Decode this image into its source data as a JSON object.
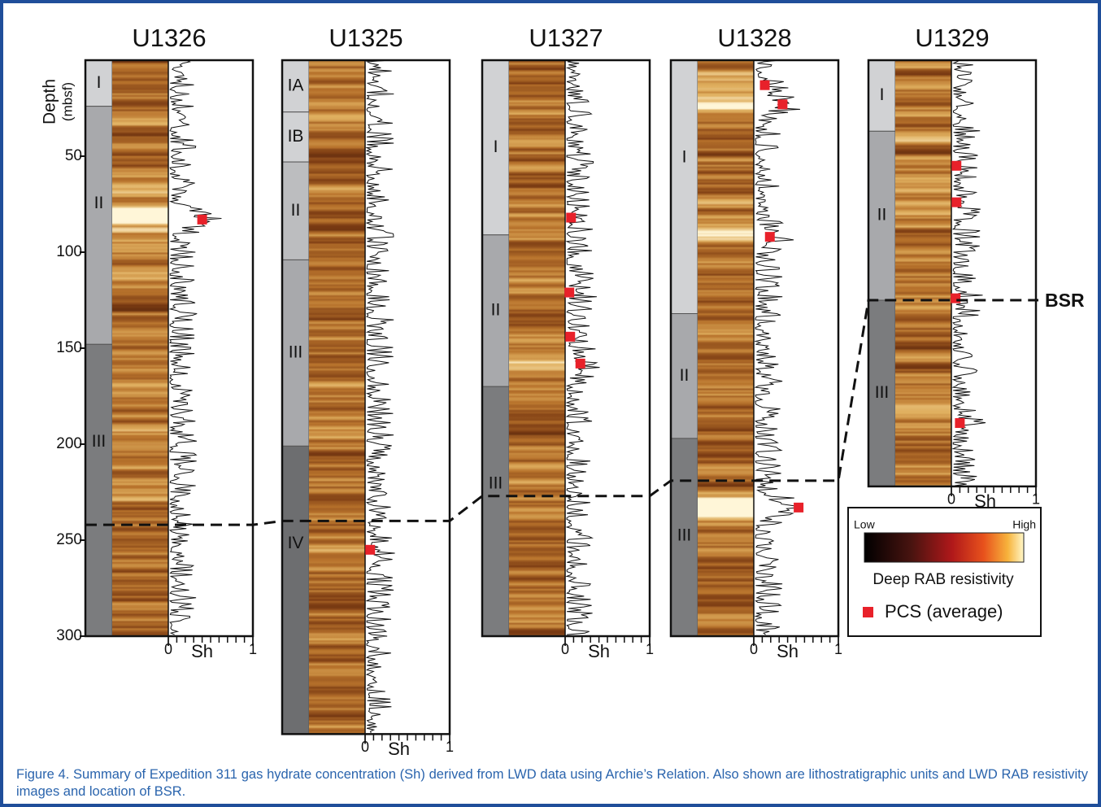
{
  "figure": {
    "depth_axis": {
      "title": "Depth",
      "unit": "(mbsf)",
      "ticks": [
        50,
        100,
        150,
        200,
        250,
        300
      ]
    },
    "sh_axis": {
      "ticks": [
        0,
        1
      ],
      "label": "Sh"
    },
    "columns": [
      {
        "site": "U1326",
        "bsr_depth": 242,
        "units": [
          {
            "label": "I",
            "top": 0,
            "bottom": 24,
            "color": "#d1d2d4"
          },
          {
            "label": "II",
            "top": 24,
            "bottom": 148,
            "color": "#a8a9ac"
          },
          {
            "label": "III",
            "top": 148,
            "bottom": 300,
            "color": "#7b7c7e"
          }
        ],
        "pcs": [
          {
            "depth": 83,
            "sh": 0.4
          }
        ]
      },
      {
        "site": "U1325",
        "bsr_depth": 240,
        "units": [
          {
            "label": "IA",
            "top": 0,
            "bottom": 27,
            "color": "#d1d2d4"
          },
          {
            "label": "IB",
            "top": 27,
            "bottom": 53,
            "color": "#d1d2d4"
          },
          {
            "label": "II",
            "top": 53,
            "bottom": 104,
            "color": "#bcbdbf"
          },
          {
            "label": "III",
            "top": 104,
            "bottom": 201,
            "color": "#a8a9ac"
          },
          {
            "label": "IV",
            "top": 201,
            "bottom": 351,
            "color": "#6d6e70"
          }
        ],
        "pcs": [
          {
            "depth": 255,
            "sh": 0.06
          }
        ]
      },
      {
        "site": "U1327",
        "bsr_depth": 227,
        "units": [
          {
            "label": "I",
            "top": 0,
            "bottom": 91,
            "color": "#d1d2d4"
          },
          {
            "label": "II",
            "top": 91,
            "bottom": 170,
            "color": "#a8a9ac"
          },
          {
            "label": "III",
            "top": 170,
            "bottom": 300,
            "color": "#7b7c7e"
          }
        ],
        "pcs": [
          {
            "depth": 82,
            "sh": 0.07
          },
          {
            "depth": 121,
            "sh": 0.05
          },
          {
            "depth": 144,
            "sh": 0.06
          },
          {
            "depth": 158,
            "sh": 0.18
          }
        ]
      },
      {
        "site": "U1328",
        "bsr_depth": 219,
        "units": [
          {
            "label": "I",
            "top": 0,
            "bottom": 132,
            "color": "#d1d2d4"
          },
          {
            "label": "II",
            "top": 132,
            "bottom": 197,
            "color": "#a8a9ac"
          },
          {
            "label": "III",
            "top": 197,
            "bottom": 300,
            "color": "#7b7c7e"
          }
        ],
        "pcs": [
          {
            "depth": 13,
            "sh": 0.13
          },
          {
            "depth": 23,
            "sh": 0.34
          },
          {
            "depth": 92,
            "sh": 0.19
          },
          {
            "depth": 233,
            "sh": 0.53
          }
        ]
      },
      {
        "site": "U1329",
        "bsr_depth": 125,
        "units": [
          {
            "label": "I",
            "top": 0,
            "bottom": 37,
            "color": "#d1d2d4"
          },
          {
            "label": "II",
            "top": 37,
            "bottom": 125,
            "color": "#a8a9ac"
          },
          {
            "label": "III",
            "top": 125,
            "bottom": 222,
            "color": "#7b7c7e"
          }
        ],
        "pcs": [
          {
            "depth": 55,
            "sh": 0.06
          },
          {
            "depth": 74,
            "sh": 0.06
          },
          {
            "depth": 124,
            "sh": 0.05
          },
          {
            "depth": 189,
            "sh": 0.1
          }
        ]
      }
    ],
    "bsr_label": "BSR",
    "legend": {
      "low": "Low",
      "high": "High",
      "resistivity": "Deep RAB resistivity",
      "pcs": "PCS (average)",
      "pcs_color": "#e8212a"
    },
    "caption": {
      "label": "Figure 4.",
      "text": " Summary of Expedition 311 gas hydrate concentration (Sh) derived from LWD data using Archie’s Relation. Also shown are lithostratigraphic units and LWD RAB resistivity images and location of BSR."
    }
  }
}
